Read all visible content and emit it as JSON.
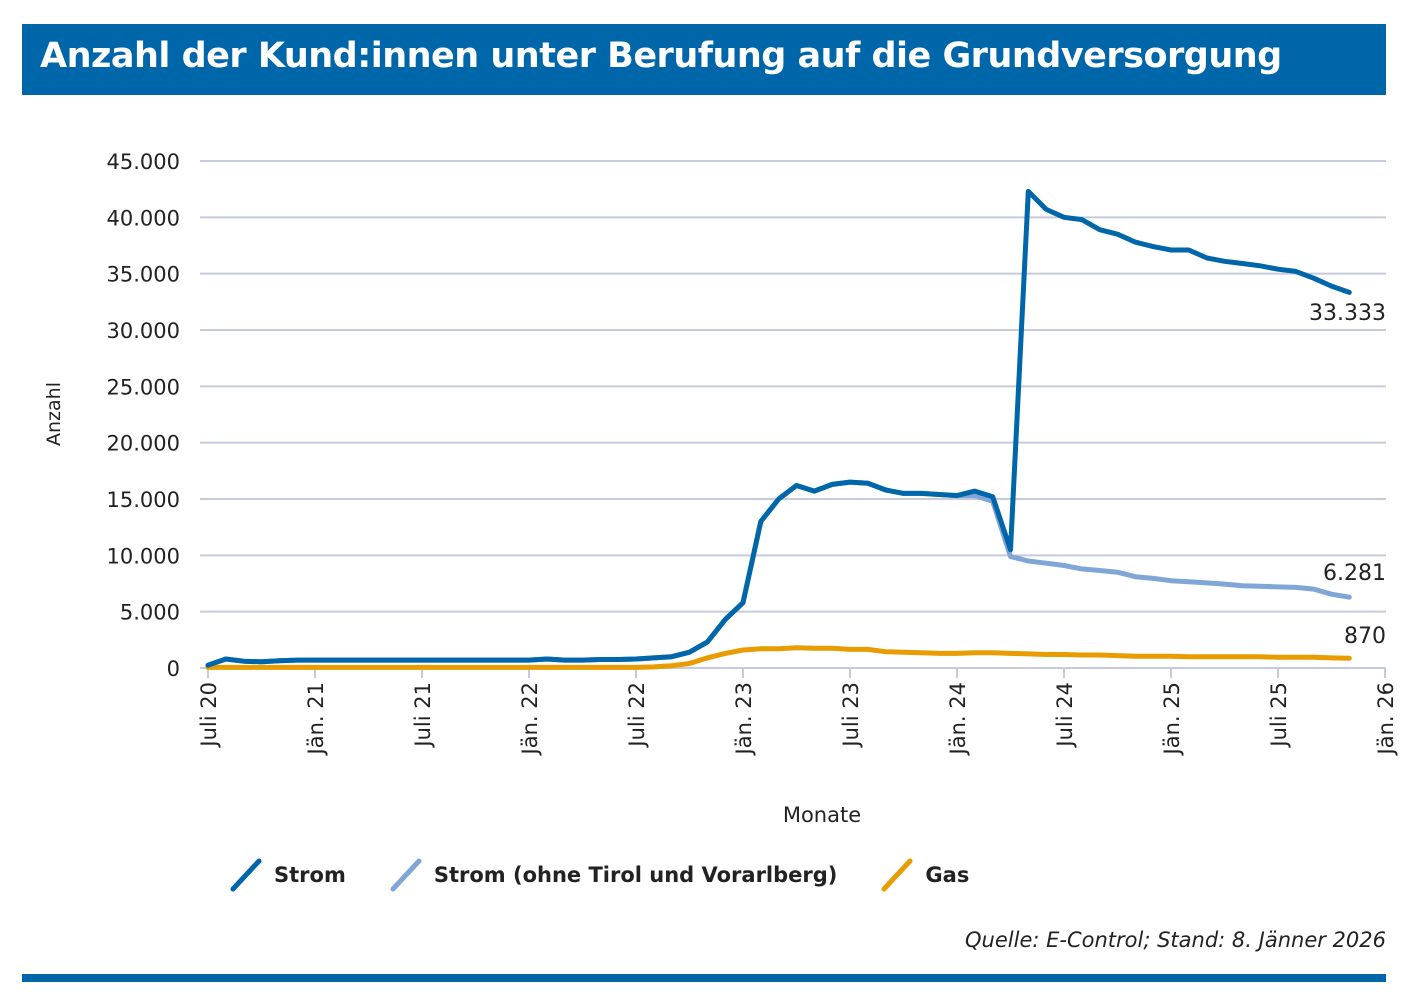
{
  "title": "Anzahl der Kund:innen unter Berufung auf die Grundversorgung",
  "source": "Quelle: E-Control; Stand: 8. Jänner 2026",
  "colors": {
    "strom": "#0066aa",
    "strom_ohne": "#7fa6d6",
    "gas": "#e89c00",
    "grid": "#c5cbdc",
    "header": "#0066aa"
  },
  "chart_data": {
    "type": "line",
    "xlabel": "Monate",
    "ylabel": "Anzahl",
    "ylim": [
      0,
      45000
    ],
    "yticks": [
      0,
      5000,
      10000,
      15000,
      20000,
      25000,
      30000,
      35000,
      40000,
      45000
    ],
    "ytick_labels": [
      "0",
      "5.000",
      "10.000",
      "15.000",
      "20.000",
      "25.000",
      "30.000",
      "35.000",
      "40.000",
      "45.000"
    ],
    "xtick_labels": [
      "Juli 20",
      "Jän. 21",
      "Juli 21",
      "Jän. 22",
      "Juli 22",
      "Jän. 23",
      "Juli 23",
      "Jän. 24",
      "Juli 24",
      "Jän. 25",
      "Juli 25",
      "Jän. 26"
    ],
    "grid": true,
    "legend": "bottom",
    "x": [
      "07/20",
      "08/20",
      "09/20",
      "10/20",
      "11/20",
      "12/20",
      "01/21",
      "02/21",
      "03/21",
      "04/21",
      "05/21",
      "06/21",
      "07/21",
      "08/21",
      "09/21",
      "10/21",
      "11/21",
      "12/21",
      "01/22",
      "02/22",
      "03/22",
      "04/22",
      "05/22",
      "06/22",
      "07/22",
      "08/22",
      "09/22",
      "10/22",
      "11/22",
      "12/22",
      "01/23",
      "02/23",
      "03/23",
      "04/23",
      "05/23",
      "06/23",
      "07/23",
      "08/23",
      "09/23",
      "10/23",
      "11/23",
      "12/23",
      "01/24",
      "02/24",
      "03/24",
      "04/24",
      "05/24",
      "06/24",
      "07/24",
      "08/24",
      "09/24",
      "10/24",
      "11/24",
      "12/24",
      "01/25",
      "02/25",
      "03/25",
      "04/25",
      "05/25",
      "06/25",
      "07/25",
      "08/25",
      "09/25",
      "10/25",
      "11/25"
    ],
    "series": [
      {
        "name": "Strom",
        "color": "#0066aa",
        "end_label": "33.333",
        "values": [
          250,
          800,
          600,
          550,
          650,
          700,
          700,
          700,
          700,
          700,
          700,
          700,
          700,
          700,
          700,
          700,
          700,
          700,
          700,
          800,
          700,
          700,
          750,
          750,
          800,
          900,
          1000,
          1400,
          2300,
          4300,
          5800,
          13000,
          15000,
          16200,
          15700,
          16300,
          16500,
          16400,
          15800,
          15500,
          15500,
          15400,
          15300,
          15700,
          15200,
          10500,
          42300,
          40700,
          40000,
          39800,
          38900,
          38500,
          37800,
          37400,
          37100,
          37100,
          36400,
          36100,
          35900,
          35700,
          35400,
          35200,
          34600,
          33900,
          33333
        ]
      },
      {
        "name": "Strom (ohne Tirol und Vorarlberg)",
        "color": "#7fa6d6",
        "end_label": "6.281",
        "values": [
          250,
          800,
          600,
          550,
          650,
          700,
          700,
          700,
          700,
          700,
          700,
          700,
          700,
          700,
          700,
          700,
          700,
          700,
          700,
          800,
          700,
          700,
          750,
          750,
          800,
          900,
          1000,
          1400,
          2300,
          4300,
          5800,
          13000,
          15000,
          16200,
          15700,
          16300,
          16500,
          16400,
          15800,
          15500,
          15500,
          15400,
          15300,
          15300,
          14800,
          9900,
          9500,
          9300,
          9100,
          8800,
          8650,
          8500,
          8100,
          7950,
          7750,
          7650,
          7550,
          7450,
          7300,
          7250,
          7200,
          7150,
          7000,
          6550,
          6281
        ]
      },
      {
        "name": "Gas",
        "color": "#e89c00",
        "end_label": "870",
        "values": [
          50,
          50,
          50,
          50,
          50,
          50,
          50,
          50,
          50,
          50,
          50,
          50,
          50,
          50,
          50,
          50,
          50,
          50,
          50,
          50,
          50,
          50,
          50,
          50,
          50,
          100,
          200,
          400,
          900,
          1300,
          1600,
          1700,
          1700,
          1800,
          1750,
          1750,
          1650,
          1650,
          1450,
          1400,
          1350,
          1300,
          1300,
          1350,
          1350,
          1300,
          1250,
          1200,
          1200,
          1150,
          1150,
          1100,
          1050,
          1050,
          1050,
          1000,
          1000,
          1000,
          1000,
          1000,
          950,
          950,
          950,
          900,
          870
        ]
      }
    ]
  }
}
